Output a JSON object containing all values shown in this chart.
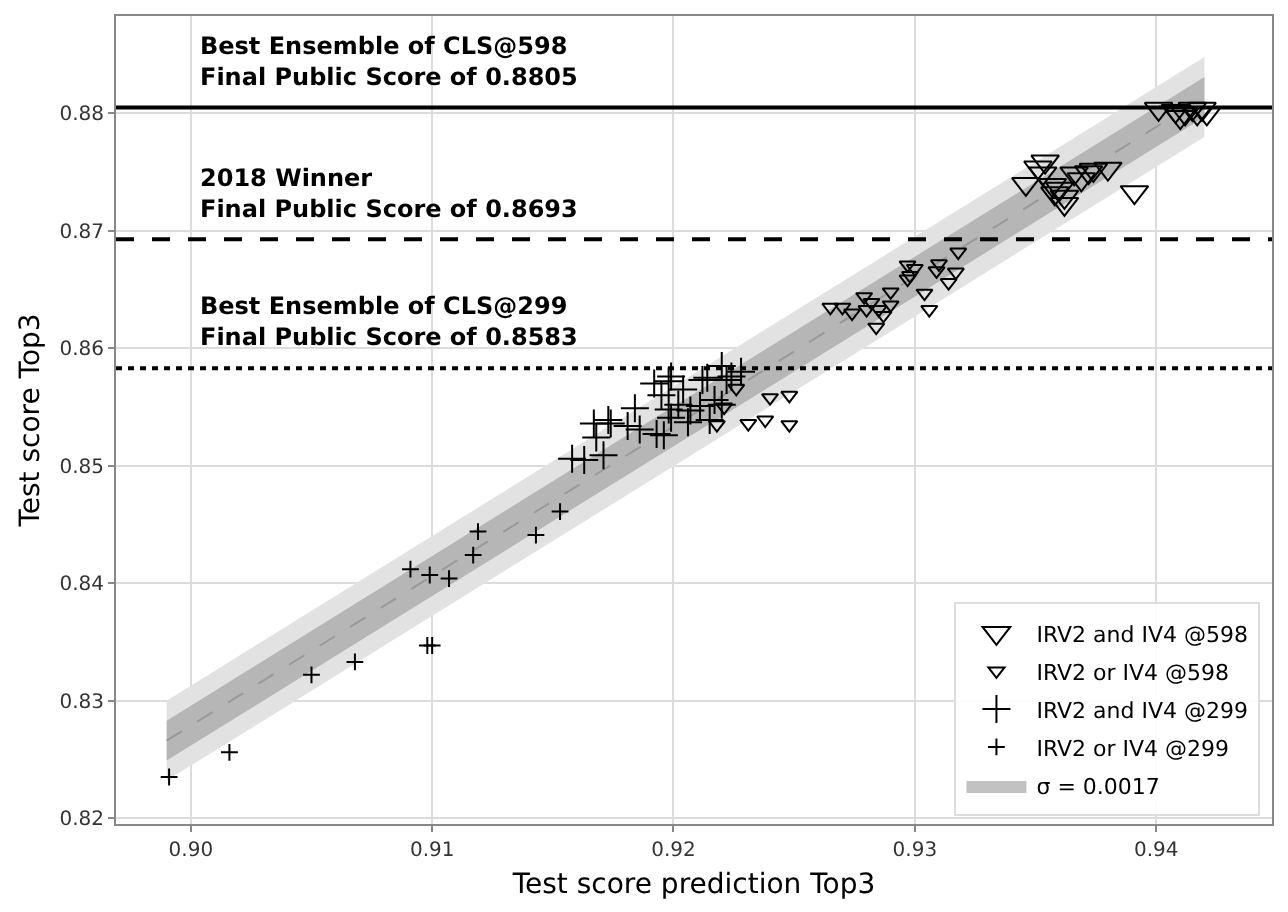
{
  "chart_data": {
    "type": "scatter",
    "xlabel": "Test score prediction Top3",
    "ylabel": "Test score Top3",
    "xlim": [
      0.8969,
      0.9448
    ],
    "ylim": [
      0.8195,
      0.8883
    ],
    "xticks": [
      {
        "value": 0.9,
        "label": "0.90"
      },
      {
        "value": 0.91,
        "label": "0.91"
      },
      {
        "value": 0.92,
        "label": "0.92"
      },
      {
        "value": 0.93,
        "label": "0.93"
      },
      {
        "value": 0.94,
        "label": "0.94"
      }
    ],
    "yticks": [
      0.82,
      0.83,
      0.84,
      0.85,
      0.86,
      0.87,
      0.88
    ],
    "grid": true,
    "legend": "bottom right",
    "series": [
      {
        "type": "line",
        "name": "σ = 0.0017",
        "color": "#999999",
        "line_style": "dashed",
        "marker": "none",
        "x": [
          0.899,
          0.942
        ],
        "values": [
          0.8266,
          0.8814
        ],
        "lower": [
          0.8249,
          0.8797
        ],
        "upper": [
          0.8283,
          0.8831
        ]
      },
      {
        "type": "line",
        "color": "#e2e2e2",
        "x": [
          0.899,
          0.942
        ],
        "values": [
          null,
          null
        ],
        "lower": [
          0.8232,
          0.878
        ],
        "upper": [
          0.83,
          0.8848
        ]
      },
      {
        "name": "IRV2 and IV4 @598",
        "color": "#000000",
        "marker": "triangle",
        "x": [
          0.9346,
          0.9351,
          0.9354,
          0.9353,
          0.9357,
          0.9358,
          0.936,
          0.9362,
          0.9362,
          0.9366,
          0.9369,
          0.9372,
          0.9374,
          0.938,
          0.9391,
          0.9401,
          0.9408,
          0.941,
          0.9412,
          0.9415,
          0.9417,
          0.9419,
          0.9421
        ],
        "values": [
          0.874,
          0.8754,
          0.8759,
          0.8749,
          0.8739,
          0.8732,
          0.8736,
          0.8723,
          0.8729,
          0.8749,
          0.8744,
          0.875,
          0.8752,
          0.8753,
          0.8733,
          0.8804,
          0.8802,
          0.8797,
          0.88,
          0.8804,
          0.88,
          0.8804,
          0.88
        ]
      },
      {
        "name": "IRV2 or IV4 @598",
        "color": "#000000",
        "marker": "triangle",
        "x": [
          0.9226,
          0.9221,
          0.9218,
          0.9231,
          0.9238,
          0.924,
          0.9248,
          0.9248,
          0.9265,
          0.927,
          0.9274,
          0.9279,
          0.9282,
          0.9285,
          0.9287,
          0.928,
          0.9284,
          0.929,
          0.929,
          0.9297,
          0.93,
          0.9298,
          0.9297,
          0.9304,
          0.9306,
          0.9309,
          0.931,
          0.9314,
          0.9317,
          0.9318
        ],
        "values": [
          0.8566,
          0.855,
          0.8535,
          0.8536,
          0.8539,
          0.8558,
          0.856,
          0.8535,
          0.8635,
          0.8635,
          0.863,
          0.8644,
          0.8639,
          0.8633,
          0.8628,
          0.8633,
          0.8618,
          0.8637,
          0.8648,
          0.8671,
          0.8668,
          0.8662,
          0.8659,
          0.8647,
          0.8633,
          0.8666,
          0.8672,
          0.8656,
          0.8665,
          0.8682
        ]
      },
      {
        "name": "IRV2 and IV4 @299",
        "color": "#000000",
        "marker": "cross",
        "x": [
          0.9158,
          0.9163,
          0.9171,
          0.9168,
          0.9167,
          0.9173,
          0.9174,
          0.9181,
          0.9184,
          0.9186,
          0.9193,
          0.9196,
          0.9192,
          0.9198,
          0.9195,
          0.9198,
          0.9199,
          0.9202,
          0.9204,
          0.9206,
          0.9207,
          0.9212,
          0.9211,
          0.9214,
          0.9215,
          0.9217,
          0.922,
          0.9222,
          0.9224,
          0.9228,
          0.922,
          0.9199
        ],
        "values": [
          0.8506,
          0.8505,
          0.8509,
          0.8524,
          0.8536,
          0.8539,
          0.8536,
          0.8534,
          0.8549,
          0.8531,
          0.8527,
          0.8526,
          0.857,
          0.8572,
          0.856,
          0.8548,
          0.8541,
          0.8552,
          0.8565,
          0.8537,
          0.8547,
          0.8573,
          0.8551,
          0.8575,
          0.8539,
          0.8556,
          0.8585,
          0.8573,
          0.8576,
          0.858,
          0.8552,
          0.8576
        ]
      },
      {
        "name": "IRV2 or IV4 @299",
        "color": "#000000",
        "marker": "cross",
        "x": [
          0.8991,
          0.9016,
          0.905,
          0.9068,
          0.9091,
          0.9099,
          0.9107,
          0.9098,
          0.91,
          0.9117,
          0.9119,
          0.9143,
          0.9153
        ],
        "values": [
          0.8235,
          0.8256,
          0.8322,
          0.8333,
          0.8412,
          0.8407,
          0.8404,
          0.8347,
          0.8347,
          0.8424,
          0.8444,
          0.8441,
          0.8461
        ]
      }
    ],
    "ref_lines": [
      {
        "axis": "y",
        "value": 0.8805,
        "label": "Best Ensemble of CLS@598\nFinal Public Score of 0.8805",
        "color": "#000000",
        "line_style": "solid"
      },
      {
        "axis": "y",
        "value": 0.8693,
        "label": "2018 Winner\nFinal Public Score of 0.8693",
        "color": "#000000",
        "line_style": "dashed"
      },
      {
        "axis": "y",
        "value": 0.8583,
        "label": "Best Ensemble of CLS@299\nFinal Public Score of 0.8583",
        "color": "#000000",
        "line_style": "dotted"
      }
    ]
  }
}
